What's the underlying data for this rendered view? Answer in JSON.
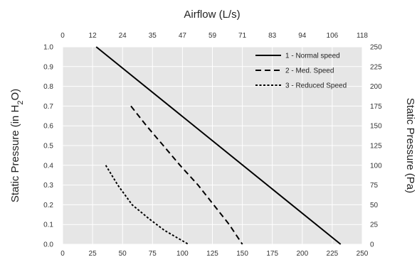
{
  "chart_data": {
    "type": "line",
    "title": "",
    "x_axis_bottom": {
      "label": "",
      "lim": [
        0,
        250
      ],
      "ticks": [
        "0",
        "25",
        "50",
        "75",
        "100",
        "125",
        "150",
        "175",
        "200",
        "225",
        "250"
      ]
    },
    "x_axis_top": {
      "label": "Airflow (L/s)",
      "lim": [
        0,
        118
      ],
      "ticks": [
        "0",
        "12",
        "24",
        "35",
        "47",
        "59",
        "71",
        "83",
        "94",
        "106",
        "118"
      ]
    },
    "y_axis_left": {
      "label_parts": [
        "Static Pressure (in H",
        "2",
        "O)"
      ],
      "lim": [
        0,
        1
      ],
      "ticks": [
        "0.0",
        "0.1",
        "0.2",
        "0.3",
        "0.4",
        "0.5",
        "0.6",
        "0.7",
        "0.8",
        "0.9",
        "1.0"
      ]
    },
    "y_axis_right": {
      "label": "Static Pressure (Pa)",
      "lim": [
        0,
        250
      ],
      "ticks": [
        "0",
        "25",
        "50",
        "75",
        "100",
        "125",
        "150",
        "175",
        "200",
        "225",
        "250"
      ]
    },
    "grid": true,
    "plot_background": "#e6e6e6",
    "legend_position": "top-right",
    "series": [
      {
        "name": "1 - Normal speed",
        "style": "solid",
        "color": "#000000",
        "points": [
          [
            28,
            1.0
          ],
          [
            232,
            0.0
          ]
        ]
      },
      {
        "name": "2 - Med. Speed",
        "style": "dashed",
        "color": "#000000",
        "points": [
          [
            57,
            0.7
          ],
          [
            70,
            0.6
          ],
          [
            84,
            0.5
          ],
          [
            98,
            0.4
          ],
          [
            113,
            0.3
          ],
          [
            126,
            0.2
          ],
          [
            139,
            0.1
          ],
          [
            150,
            0.0
          ]
        ]
      },
      {
        "name": "3 - Reduced Speed",
        "style": "dotted",
        "color": "#000000",
        "points": [
          [
            36,
            0.4
          ],
          [
            46,
            0.3
          ],
          [
            58,
            0.2
          ],
          [
            72,
            0.13
          ],
          [
            85,
            0.07
          ],
          [
            105,
            0.0
          ]
        ]
      }
    ]
  }
}
